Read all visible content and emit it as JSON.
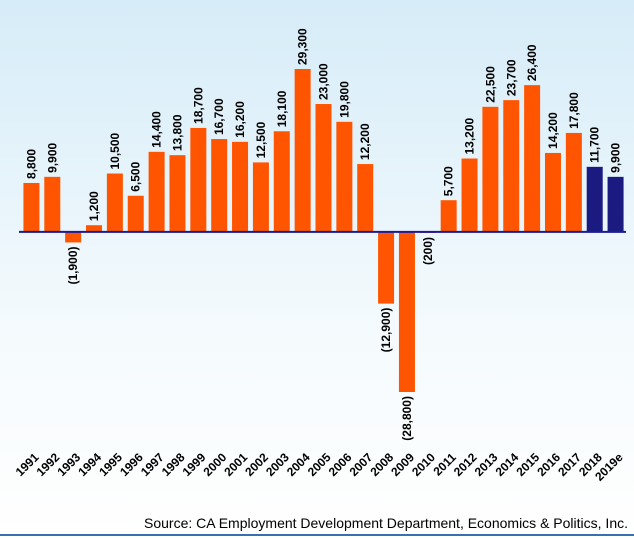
{
  "chart_data": {
    "type": "bar",
    "categories": [
      "1991",
      "1992",
      "1993",
      "1994",
      "1995",
      "1996",
      "1997",
      "1998",
      "1999",
      "2000",
      "2001",
      "2002",
      "2003",
      "2004",
      "2005",
      "2006",
      "2007",
      "2008",
      "2009",
      "2010",
      "2011",
      "2012",
      "2013",
      "2014",
      "2015",
      "2016",
      "2017",
      "2018",
      "2019e"
    ],
    "values": [
      8800,
      9900,
      -1900,
      1200,
      10500,
      6500,
      14400,
      13800,
      18700,
      16700,
      16200,
      12500,
      18100,
      29300,
      23000,
      19800,
      12200,
      -12900,
      -28800,
      -200,
      5700,
      13200,
      22500,
      23700,
      26400,
      14200,
      17800,
      11700,
      9900
    ],
    "value_labels": [
      "8,800",
      "9,900",
      "(1,900)",
      "1,200",
      "10,500",
      "6,500",
      "14,400",
      "13,800",
      "18,700",
      "16,700",
      "16,200",
      "12,500",
      "18,100",
      "29,300",
      "23,000",
      "19,800",
      "12,200",
      "(12,900)",
      "(28,800)",
      "(200)",
      "5,700",
      "13,200",
      "22,500",
      "23,700",
      "26,400",
      "14,200",
      "17,800",
      "11,700",
      "9,900"
    ],
    "colors": [
      "#ff5500",
      "#ff5500",
      "#ff5500",
      "#ff5500",
      "#ff5500",
      "#ff5500",
      "#ff5500",
      "#ff5500",
      "#ff5500",
      "#ff5500",
      "#ff5500",
      "#ff5500",
      "#ff5500",
      "#ff5500",
      "#ff5500",
      "#ff5500",
      "#ff5500",
      "#ff5500",
      "#ff5500",
      "#ff5500",
      "#ff5500",
      "#ff5500",
      "#ff5500",
      "#ff5500",
      "#ff5500",
      "#ff5500",
      "#ff5500",
      "#1a1a80",
      "#1a1a80"
    ],
    "source": "Source: CA Employment Development Department,  Economics & Politics, Inc."
  }
}
